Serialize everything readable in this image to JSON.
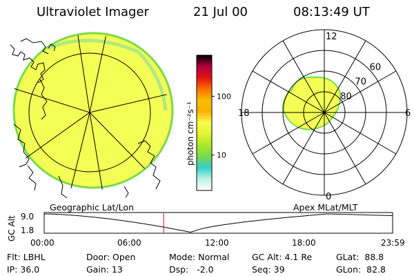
{
  "header": {
    "instrument": "Ultraviolet Imager",
    "date": "21 Jul 00",
    "time": "08:13:49 UT"
  },
  "colorbar": {
    "ticks": [
      {
        "label": "100",
        "value": 100
      },
      {
        "label": "10",
        "value": 10
      }
    ],
    "units": "photon cm⁻²s⁻¹",
    "min": 2.5,
    "max": 500,
    "scale": "log",
    "stops": [
      "#ffffff",
      "#bff2e4",
      "#33d1cf",
      "#79d94c",
      "#a9e82b",
      "#e3f230",
      "#f7ff4f",
      "#ffb100",
      "#f5c000",
      "#ff6f00",
      "#e31212",
      "#b00040",
      "#000000"
    ]
  },
  "geo_panel": {
    "title": "Geographic Lat/Lon"
  },
  "polar_panel": {
    "title": "Apex MLat/MLT",
    "mlt_labels": {
      "top": "12",
      "left": "18",
      "right": "6",
      "bottom": "0"
    },
    "lat_labels": [
      "60",
      "70",
      "80"
    ],
    "lat_rings": [
      60,
      70,
      80
    ],
    "outer_lat": 50
  },
  "altitude_plot": {
    "ylabel": "GC Alt",
    "yticks": [
      "9.0",
      "1.8"
    ],
    "ylim": [
      1.8,
      9.0
    ],
    "xticks": [
      "00:00",
      "06:00",
      "12:00",
      "18:00",
      "23:59"
    ],
    "marker_hour": 8.23
  },
  "footer": {
    "filter": "Flt: LBHL",
    "ip": "IP: 36.0",
    "door": "Door: Open",
    "gain": "Gain: 13",
    "mode": "Mode: Normal",
    "dsp": "Dsp:   -2.0",
    "gc_alt": "GC Alt: 4.1 Re",
    "seq": "Seq: 39",
    "glat": "GLat:  88.8",
    "glon": "GLon:  82.8"
  }
}
